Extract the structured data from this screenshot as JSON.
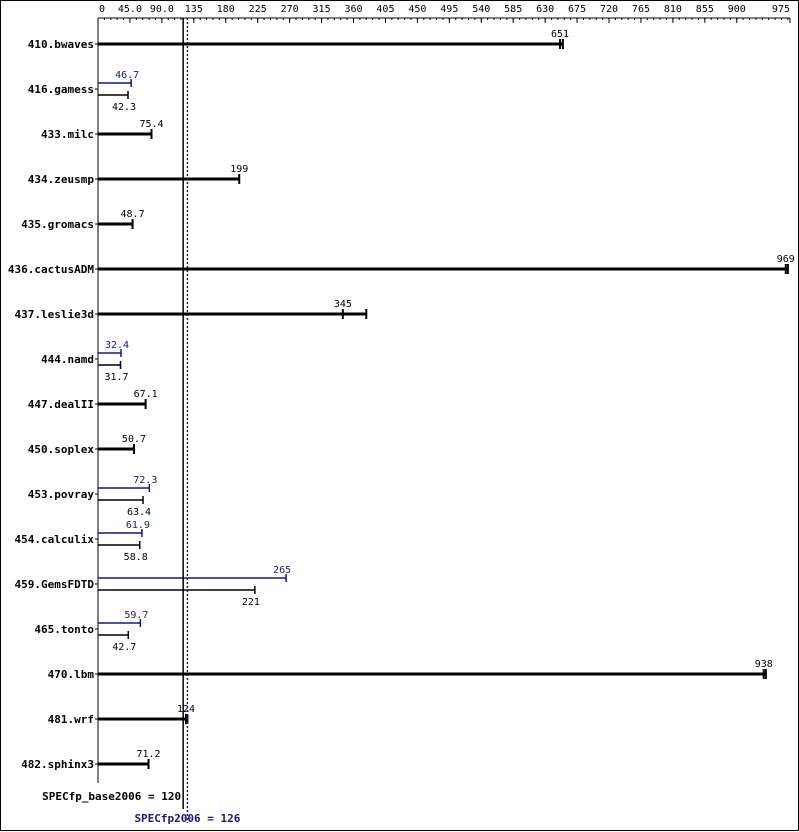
{
  "chart_data": {
    "type": "bar",
    "orientation": "horizontal",
    "title": "",
    "xlabel": "",
    "ylabel": "",
    "xlim": [
      0,
      975
    ],
    "x_ticks": [
      "0",
      "45.0",
      "90.0",
      "135",
      "180",
      "225",
      "270",
      "315",
      "360",
      "405",
      "450",
      "495",
      "540",
      "585",
      "630",
      "675",
      "720",
      "765",
      "810",
      "855",
      "900",
      "975"
    ],
    "categories": [
      "410.bwaves",
      "416.gamess",
      "433.milc",
      "434.zeusmp",
      "435.gromacs",
      "436.cactusADM",
      "437.leslie3d",
      "444.namd",
      "447.dealII",
      "450.soplex",
      "453.povray",
      "454.calculix",
      "459.GemsFDTD",
      "465.tonto",
      "470.lbm",
      "481.wrf",
      "482.sphinx3"
    ],
    "series": [
      {
        "role": "peak",
        "color": "#191970",
        "values": [
          null,
          46.7,
          null,
          null,
          null,
          null,
          null,
          32.4,
          null,
          null,
          72.3,
          61.9,
          265,
          59.7,
          null,
          null,
          null
        ],
        "labels": [
          null,
          "46.7",
          null,
          null,
          null,
          null,
          null,
          "32.4",
          null,
          null,
          "72.3",
          "61.9",
          "265",
          "59.7",
          null,
          null,
          null
        ]
      },
      {
        "role": "base",
        "color": "#000000",
        "values": [
          651,
          42.3,
          75.4,
          199,
          48.7,
          969,
          345,
          31.7,
          67.1,
          50.7,
          63.4,
          58.8,
          221,
          42.7,
          938,
          124,
          71.2
        ],
        "labels": [
          "651",
          "42.3",
          "75.4",
          "199",
          "48.7",
          "969",
          "345",
          "31.7",
          "67.1",
          "50.7",
          "63.4",
          "58.8",
          "221",
          "42.7",
          "938",
          "124",
          "71.2"
        ],
        "run_max": [
          655,
          null,
          null,
          null,
          null,
          972,
          378,
          null,
          null,
          null,
          null,
          null,
          null,
          null,
          941,
          126,
          null
        ]
      }
    ],
    "reference_lines": [
      {
        "value": 120,
        "label": "SPECfp_base2006 = 120",
        "style": "solid",
        "color": "#000000"
      },
      {
        "value": 126,
        "label": "SPECfp2006 = 126",
        "style": "dotted",
        "color": "#191970"
      }
    ],
    "grid": false,
    "legend": "none"
  }
}
